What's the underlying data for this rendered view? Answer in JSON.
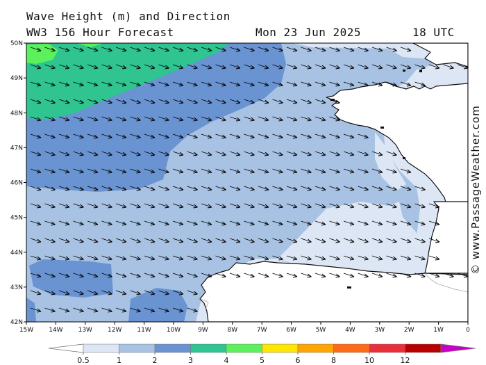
{
  "header": {
    "title_line1": "Wave Height (m) and Direction",
    "title_line2": "WW3 156 Hour Forecast",
    "date": "Mon 23 Jun 2025",
    "time": "18 UTC"
  },
  "credit": "© www.PassageWeather.com",
  "axes": {
    "lat_labels": [
      "50N",
      "49N",
      "48N",
      "47N",
      "46N",
      "45N",
      "44N",
      "43N",
      "42N"
    ],
    "lon_labels": [
      "15W",
      "14W",
      "13W",
      "12W",
      "11W",
      "10W",
      "9W",
      "8W",
      "7W",
      "6W",
      "5W",
      "4W",
      "3W",
      "2W",
      "1W",
      "0"
    ]
  },
  "scale": {
    "labels": [
      "0.5",
      "1",
      "2",
      "3",
      "4",
      "5",
      "6",
      "8",
      "10",
      "12"
    ],
    "colors": [
      "#dde6f4",
      "#a8c2e4",
      "#6a93d2",
      "#2fc490",
      "#5cf05c",
      "#ffe600",
      "#ffa500",
      "#ff6a18",
      "#e8303a",
      "#b80000",
      "#c800c8"
    ]
  },
  "map": {
    "region": "Bay of Biscay",
    "wave_direction": "toward south-east",
    "zone_colors": {
      "very_light": "#dde6f4",
      "light": "#a8c2e4",
      "medium": "#6a93d2",
      "teal": "#2fc490",
      "green": "#5cf05c"
    }
  }
}
